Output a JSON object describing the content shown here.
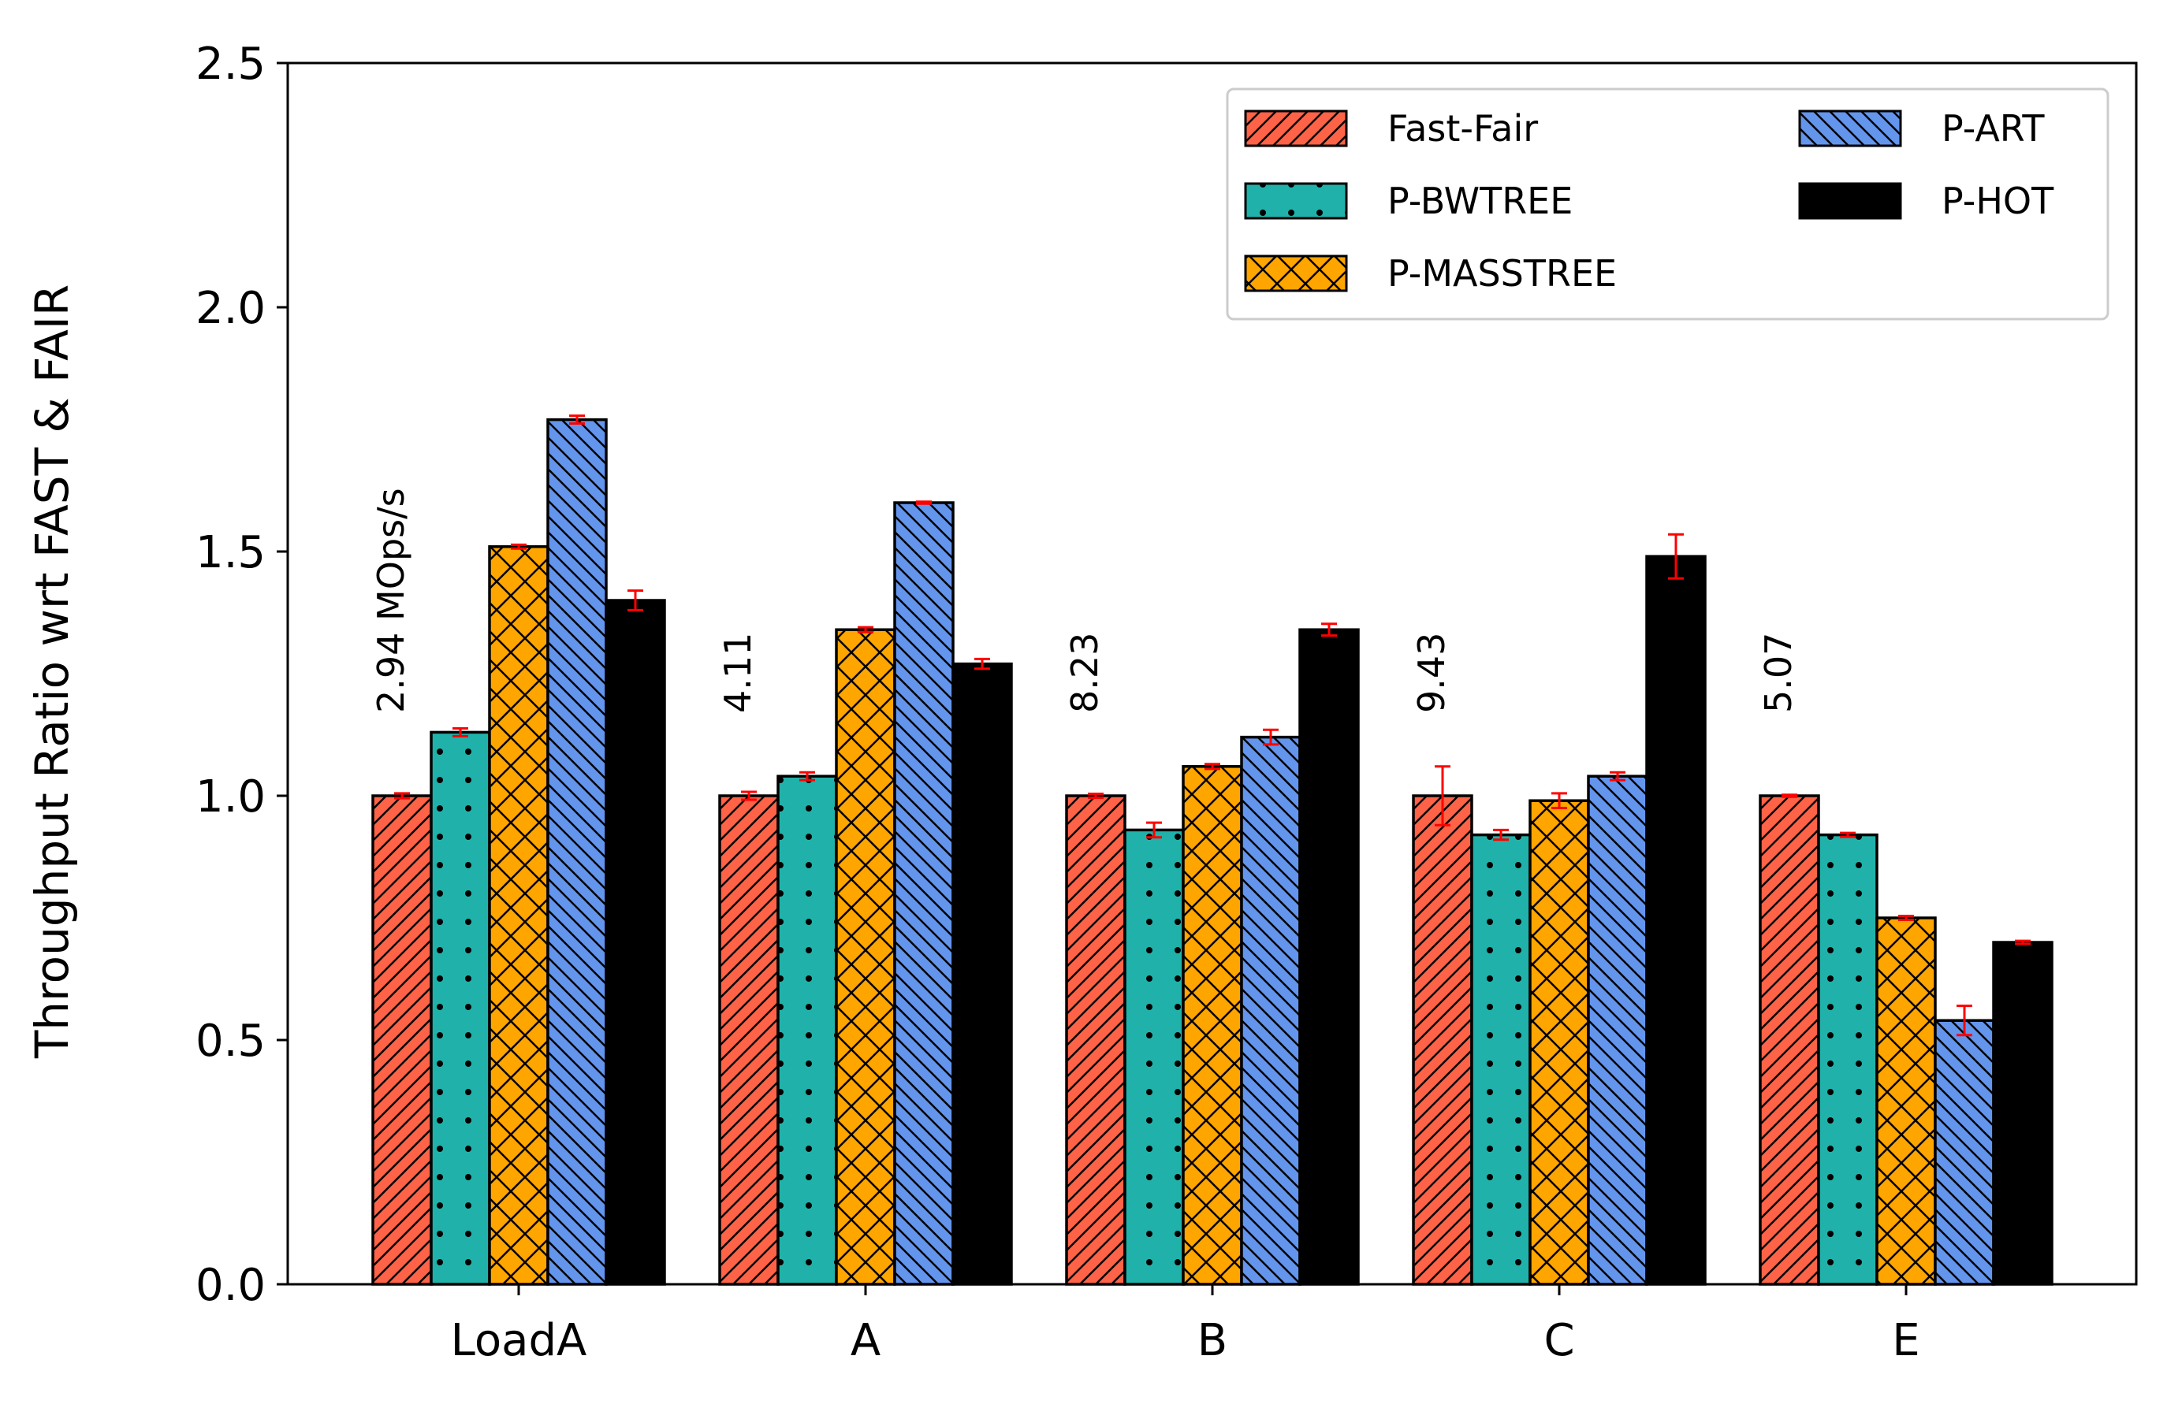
{
  "chart_data": {
    "type": "bar",
    "ylabel": "Throughput Ratio wrt FAST & FAIR",
    "xlabel": "",
    "ylim": [
      0,
      2.5
    ],
    "yticks": [
      "0.0",
      "0.5",
      "1.0",
      "1.5",
      "2.0",
      "2.5"
    ],
    "categories": [
      "LoadA",
      "A",
      "B",
      "C",
      "E"
    ],
    "legend_position": "top-right",
    "grid": false,
    "series": [
      {
        "name": "Fast-Fair",
        "color": "#FF6347",
        "pattern": "diagonal-up",
        "values": [
          1.0,
          1.0,
          1.0,
          1.0,
          1.0
        ],
        "errors": [
          0.005,
          0.008,
          0.004,
          0.06,
          0.002
        ]
      },
      {
        "name": "P-BWTREE",
        "color": "#20B2AA",
        "pattern": "dots",
        "values": [
          1.13,
          1.04,
          0.93,
          0.92,
          0.92
        ],
        "errors": [
          0.008,
          0.008,
          0.015,
          0.01,
          0.004
        ]
      },
      {
        "name": "P-MASSTREE",
        "color": "#FFA500",
        "pattern": "crosshatch",
        "values": [
          1.51,
          1.34,
          1.06,
          0.99,
          0.75
        ],
        "errors": [
          0.004,
          0.005,
          0.005,
          0.015,
          0.004
        ]
      },
      {
        "name": "P-ART",
        "color": "#6495ED",
        "pattern": "diagonal-down",
        "values": [
          1.77,
          1.6,
          1.12,
          1.04,
          0.54
        ],
        "errors": [
          0.008,
          0.002,
          0.015,
          0.008,
          0.03
        ]
      },
      {
        "name": "P-HOT",
        "color": "#000000",
        "pattern": "solid",
        "values": [
          1.4,
          1.27,
          1.34,
          1.49,
          0.7
        ],
        "errors": [
          0.02,
          0.01,
          0.012,
          0.045,
          0.003
        ]
      }
    ],
    "annotations": [
      "2.94  MOps/s",
      "4.11",
      "8.23",
      "9.43",
      "5.07"
    ],
    "errorbar_color": "#FF0000"
  }
}
